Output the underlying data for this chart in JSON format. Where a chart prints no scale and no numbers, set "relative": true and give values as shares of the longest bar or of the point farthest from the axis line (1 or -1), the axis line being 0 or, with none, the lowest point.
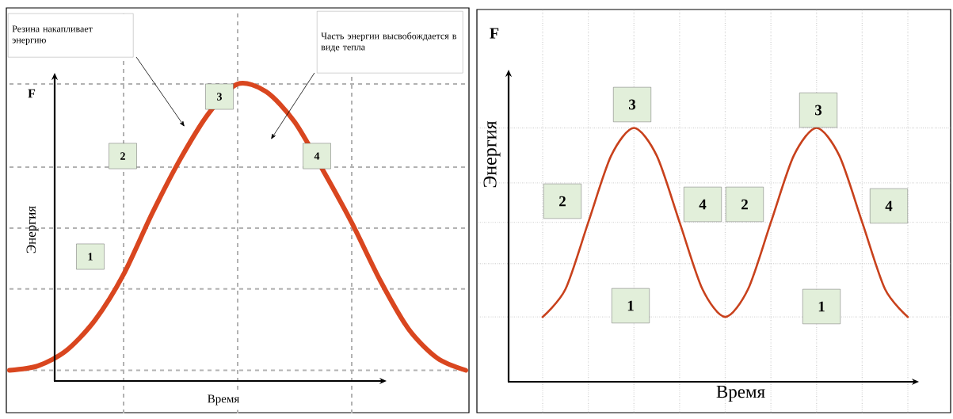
{
  "chart_data": [
    {
      "type": "line",
      "relative": true,
      "grid": true,
      "color": "#d9461f",
      "categories": [
        null,
        null,
        null,
        null,
        null,
        null,
        null,
        null,
        null,
        null,
        null,
        null,
        null,
        null,
        null,
        null,
        null
      ],
      "values": [
        0.036,
        0.051,
        0.103,
        0.205,
        0.359,
        0.564,
        0.749,
        0.903,
        1.0,
        0.974,
        0.872,
        0.708,
        0.533,
        0.338,
        0.174,
        0.077,
        0.036
      ],
      "xlabel": "Время",
      "ylabel": "Энергия",
      "annotations": [
        "Резина накапливает энергию",
        "Часть энергии высвобождается в виде тепла",
        "F",
        "1",
        "2",
        "3",
        "4"
      ]
    },
    {
      "type": "line",
      "relative": true,
      "grid": true,
      "color": "#c8411c",
      "categories": [
        null,
        null,
        null,
        null,
        null,
        null,
        null,
        null,
        null,
        null,
        null,
        null,
        null,
        null,
        null,
        null,
        null
      ],
      "values": [
        0.253,
        0.363,
        0.627,
        0.89,
        1.0,
        0.89,
        0.627,
        0.363,
        0.253,
        0.363,
        0.627,
        0.89,
        1.0,
        0.89,
        0.627,
        0.363,
        0.253
      ],
      "xlabel": "Время",
      "ylabel": "Энергия",
      "annotations": [
        "F",
        "3",
        "2",
        "4",
        "2",
        "3",
        "4",
        "1",
        "1"
      ]
    }
  ]
}
